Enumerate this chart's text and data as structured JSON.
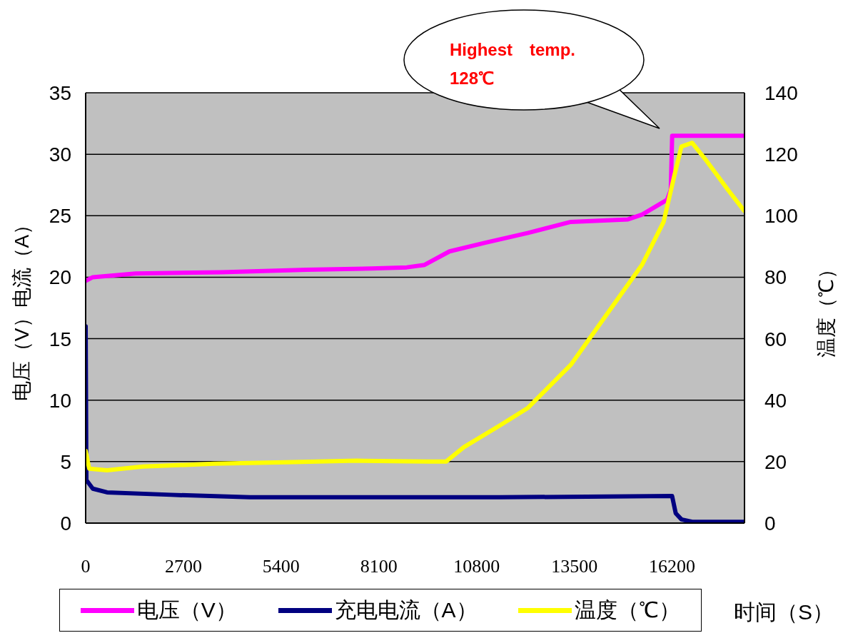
{
  "chart_data": {
    "type": "line",
    "xlabel": "时间（S）",
    "ylabel": "电压（V）电流（A）",
    "y2label": "温度（℃）",
    "annotations": [
      "Highest　temp. 128℃"
    ],
    "xlim": [
      0,
      18200
    ],
    "xticks": [
      0,
      2700,
      5400,
      8100,
      10800,
      13500,
      16200
    ],
    "ylim": [
      0,
      35
    ],
    "yticks": [
      0,
      5,
      10,
      15,
      20,
      25,
      30,
      35
    ],
    "y2lim": [
      0,
      140
    ],
    "y2ticks": [
      0,
      20,
      40,
      60,
      80,
      100,
      120,
      140
    ],
    "grid": "y",
    "legend": "bottom",
    "marker": "none",
    "line_style": "solid",
    "series": [
      {
        "name": "电压（V）",
        "color": "#ff00ff",
        "x": [
          0,
          197,
          1380,
          3745,
          6110,
          7884,
          8870,
          9362,
          10052,
          11038,
          12220,
          13403,
          14980,
          15374,
          16064,
          16163,
          16202,
          18200
        ],
        "values": [
          19.7,
          20.0,
          20.3,
          20.4,
          20.6,
          20.7,
          20.8,
          21.0,
          22.1,
          22.8,
          23.6,
          24.5,
          24.7,
          25.1,
          26.3,
          27.1,
          31.5,
          31.5
        ]
      },
      {
        "name": "充电电流（A）",
        "color": "#000080",
        "x": [
          0,
          20,
          197,
          591,
          2365,
          4533,
          7490,
          11432,
          16200,
          16300,
          16460,
          16754,
          18200
        ],
        "values": [
          16,
          3.5,
          2.8,
          2.5,
          2.3,
          2.1,
          2.1,
          2.1,
          2.2,
          0.8,
          0.3,
          0.1,
          0.1
        ]
      },
      {
        "name": "温度（℃）",
        "color": "#ffff00",
        "axis": "y2",
        "x": [
          0,
          99,
          591,
          1577,
          3548,
          5519,
          7490,
          9461,
          9954,
          10446,
          11432,
          12220,
          13403,
          14388,
          15374,
          15966,
          16261,
          16458,
          16754,
          17148,
          17739,
          18192
        ],
        "values": [
          23.5,
          17.7,
          17.2,
          18.4,
          19.3,
          19.8,
          20.3,
          20.0,
          20.0,
          24.7,
          31.7,
          37.5,
          51.5,
          67.8,
          84.1,
          98,
          113,
          122.5,
          123.7,
          117.9,
          108.5,
          101.6
        ]
      }
    ]
  }
}
